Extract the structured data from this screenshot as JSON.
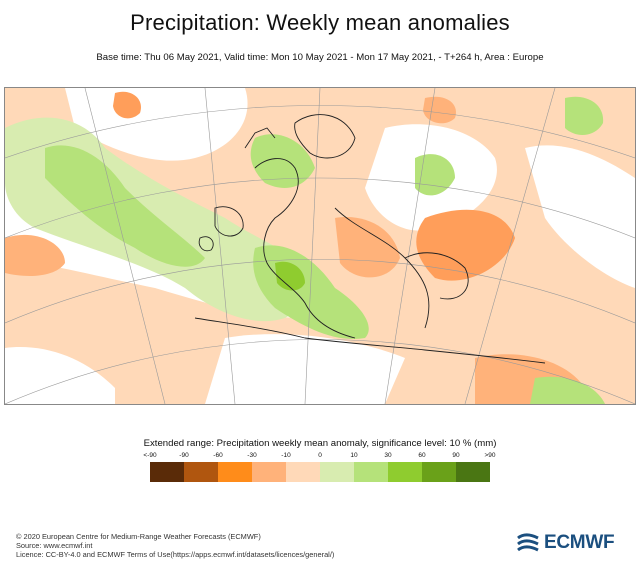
{
  "header": {
    "title": "Precipitation: Weekly mean anomalies",
    "subtitle": "Base time: Thu 06 May 2021, Valid time: Mon 10 May 2021 - Mon 17 May 2021, - T+264 h, Area : Europe"
  },
  "legend": {
    "title": "Extended range: Precipitation weekly mean anomaly, significance level: 10 % (mm)",
    "tick_labels": [
      "<-90",
      "-90",
      "-60",
      "-30",
      "-10",
      "0",
      "10",
      "30",
      "60",
      "90",
      ">90"
    ],
    "colors": [
      "#5a2b08",
      "#b0560f",
      "#ff8c1a",
      "#ffb27a",
      "#ffd9b8",
      "#ffffff",
      "#d8ecb0",
      "#b5e27a",
      "#8fcc2f",
      "#6aa119",
      "#4a7613"
    ]
  },
  "map": {
    "region": "Europe",
    "projection": "polar-stereographic",
    "anomaly_colors": {
      "dry_strong": "#ff9e5a",
      "dry_moderate": "#ffb27a",
      "dry_weak": "#ffd9b8",
      "wet_weak": "#d8ecb0",
      "wet_moderate": "#b5e27a",
      "wet_strong": "#8fcc2f"
    }
  },
  "footer": {
    "credit_lines": [
      "© 2020 European Centre for Medium-Range Weather Forecasts (ECMWF)",
      "Source: www.ecmwf.int",
      "Licence: CC-BY-4.0 and ECMWF Terms of Use(https://apps.ecmwf.int/datasets/licences/general/)"
    ],
    "logo_text": "ECMWF",
    "logo_color": "#1b4f7f"
  }
}
